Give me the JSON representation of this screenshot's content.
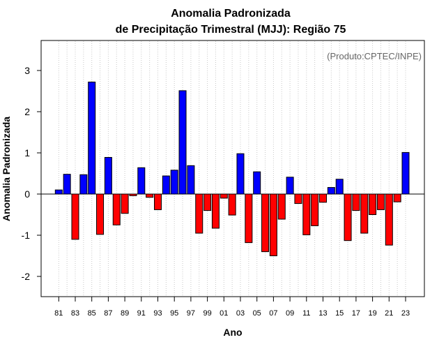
{
  "chart_data": {
    "type": "bar",
    "title": "Anomalia Padronizada",
    "subtitle": "de Precipitação Trimestral (MJJ): Região 75",
    "xlabel": "Ano",
    "ylabel": "Anomalia Padronizada",
    "credit": "(Produto:CPTEC/INPE)",
    "ylim": [
      -2.5,
      3.7
    ],
    "yticks": [
      "-2",
      "-1",
      "0",
      "1",
      "2",
      "3"
    ],
    "ytick_values": [
      -2,
      -1,
      0,
      1,
      2,
      3
    ],
    "xtick_labels": [
      "81",
      "83",
      "85",
      "87",
      "89",
      "91",
      "93",
      "95",
      "97",
      "99",
      "01",
      "03",
      "05",
      "07",
      "09",
      "11",
      "13",
      "15",
      "17",
      "19",
      "21",
      "23"
    ],
    "grid": "vertical-dotted",
    "positive_color": "#0000ff",
    "negative_color": "#ff0000",
    "categories": [
      1981,
      1982,
      1983,
      1984,
      1985,
      1986,
      1987,
      1988,
      1989,
      1990,
      1991,
      1992,
      1993,
      1994,
      1995,
      1996,
      1997,
      1998,
      1999,
      2000,
      2001,
      2002,
      2003,
      2004,
      2005,
      2006,
      2007,
      2008,
      2009,
      2010,
      2011,
      2012,
      2013,
      2014,
      2015,
      2016,
      2017,
      2018,
      2019,
      2020,
      2021,
      2022,
      2023
    ],
    "values": [
      0.1,
      0.48,
      -1.1,
      0.47,
      2.72,
      -0.98,
      0.89,
      -0.75,
      -0.47,
      -0.04,
      0.64,
      -0.08,
      -0.38,
      0.44,
      0.58,
      2.51,
      0.69,
      -0.95,
      -0.4,
      -0.83,
      -0.1,
      -0.51,
      0.98,
      -1.18,
      0.54,
      -1.4,
      -1.5,
      -0.61,
      0.41,
      -0.23,
      -0.99,
      -0.77,
      -0.2,
      0.16,
      0.36,
      -1.13,
      -0.4,
      -0.95,
      -0.5,
      -0.38,
      -1.24,
      -0.19,
      1.01
    ]
  }
}
